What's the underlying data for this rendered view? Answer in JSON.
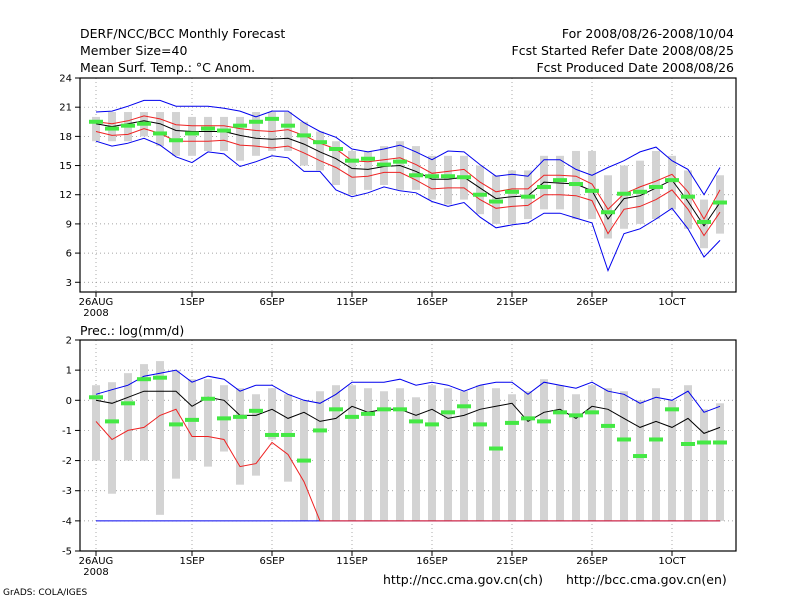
{
  "header": {
    "title": "DERF/NCC/BCC Monthly Forecast",
    "member_size": "Member Size=40",
    "variable": "Mean Surf. Temp.: °C Anom.",
    "period": "For 2008/08/26-2008/10/04",
    "started": "Fcst Started Refer Date 2008/08/25",
    "produced": "Fcst Produced Date 2008/08/26"
  },
  "footer": {
    "url_ch": "http://ncc.cma.gov.cn(ch)",
    "url_en": "http://bcc.cma.gov.cn(en)",
    "credit": "GrADS: COLA/IGES"
  },
  "colors": {
    "bar": "#d3d3d3",
    "member": "#44e844",
    "max_min": "#0000ee",
    "spread": "#ee2222",
    "mean": "#000000",
    "grid": "#888888"
  },
  "chart_data": [
    {
      "type": "line",
      "title": "Mean Surf. Temp.: °C Anom.",
      "x": [
        1,
        2,
        3,
        4,
        5,
        6,
        7,
        8,
        9,
        10,
        11,
        12,
        13,
        14,
        15,
        16,
        17,
        18,
        19,
        20,
        21,
        22,
        23,
        24,
        25,
        26,
        27,
        28,
        29,
        30,
        31,
        32,
        33,
        34,
        35,
        36,
        37,
        38,
        39,
        40
      ],
      "xlim": [
        0,
        41
      ],
      "ylim": [
        2,
        24
      ],
      "yticks": [
        3,
        6,
        9,
        12,
        15,
        18,
        21,
        24
      ],
      "xticks": [
        {
          "x": 1,
          "label": "26AUG"
        },
        {
          "x": 7,
          "label": "1SEP"
        },
        {
          "x": 12,
          "label": "6SEP"
        },
        {
          "x": 17,
          "label": "11SEP"
        },
        {
          "x": 22,
          "label": "16SEP"
        },
        {
          "x": 27,
          "label": "21SEP"
        },
        {
          "x": 32,
          "label": "26SEP"
        },
        {
          "x": 37,
          "label": "1OCT"
        }
      ],
      "year_label": "2008",
      "series": [
        {
          "name": "max",
          "values": [
            20.5,
            20.6,
            21.1,
            21.7,
            21.7,
            21.1,
            21.1,
            21.1,
            20.9,
            20.6,
            20.0,
            20.6,
            20.6,
            19.4,
            18.5,
            17.9,
            16.7,
            16.4,
            16.7,
            17.1,
            16.4,
            15.6,
            16.5,
            16.4,
            15.1,
            13.9,
            14.1,
            13.9,
            15.6,
            15.6,
            14.6,
            14.0,
            14.8,
            15.5,
            16.4,
            16.9,
            15.5,
            14.6,
            12.0,
            14.8
          ]
        },
        {
          "name": "upper",
          "values": [
            19.5,
            19.3,
            19.6,
            20.1,
            19.8,
            19.2,
            19.1,
            19.1,
            19.1,
            18.8,
            18.6,
            18.5,
            18.7,
            18.1,
            17.3,
            16.7,
            15.5,
            15.4,
            15.6,
            15.8,
            15.1,
            14.2,
            14.4,
            14.6,
            13.3,
            12.3,
            12.6,
            12.6,
            14.0,
            14.0,
            13.9,
            13.1,
            10.5,
            12.1,
            12.8,
            13.4,
            14.1,
            12.3,
            9.5,
            12.5
          ]
        },
        {
          "name": "mean",
          "values": [
            19.3,
            19.0,
            19.3,
            19.6,
            19.3,
            18.6,
            18.5,
            18.5,
            18.5,
            18.1,
            17.8,
            17.7,
            17.8,
            17.2,
            16.4,
            15.7,
            14.7,
            14.6,
            14.9,
            15.0,
            14.4,
            13.6,
            13.6,
            13.8,
            12.7,
            11.6,
            11.8,
            11.9,
            13.3,
            13.2,
            13.1,
            12.4,
            9.5,
            11.6,
            11.9,
            12.7,
            13.5,
            11.3,
            8.8,
            11.2
          ]
        },
        {
          "name": "lower",
          "values": [
            18.5,
            18.1,
            18.2,
            18.8,
            18.3,
            17.5,
            17.5,
            17.5,
            17.6,
            17.1,
            17.0,
            16.8,
            17.0,
            16.3,
            15.5,
            14.8,
            13.8,
            13.9,
            14.3,
            14.3,
            13.5,
            12.6,
            12.7,
            12.7,
            11.5,
            10.6,
            10.8,
            10.9,
            12.0,
            12.0,
            11.9,
            11.4,
            8.0,
            10.5,
            10.8,
            11.5,
            12.5,
            10.5,
            7.8,
            10.2
          ]
        },
        {
          "name": "min",
          "values": [
            17.5,
            17.0,
            17.3,
            17.8,
            17.1,
            15.9,
            15.3,
            16.4,
            16.2,
            14.9,
            15.4,
            16.0,
            15.8,
            14.4,
            14.4,
            12.5,
            11.8,
            12.2,
            12.8,
            12.4,
            12.2,
            11.3,
            10.8,
            11.2,
            9.7,
            8.6,
            8.9,
            9.1,
            10.1,
            10.1,
            9.6,
            9.1,
            4.2,
            8.0,
            8.5,
            9.5,
            10.6,
            8.5,
            5.6,
            7.3
          ]
        },
        {
          "name": "members",
          "values": [
            19.5,
            18.8,
            19.1,
            19.3,
            18.3,
            17.6,
            18.3,
            18.8,
            18.6,
            19.1,
            19.5,
            19.8,
            19.1,
            18.1,
            17.4,
            16.7,
            15.5,
            15.7,
            15.1,
            15.4,
            14.0,
            13.9,
            13.9,
            13.8,
            12.0,
            11.3,
            12.3,
            11.8,
            12.8,
            13.5,
            13.1,
            12.4,
            10.2,
            12.1,
            12.3,
            12.8,
            13.5,
            11.8,
            9.2,
            11.2
          ]
        },
        {
          "name": "bar_top",
          "values": [
            20.0,
            20.5,
            20.5,
            20.5,
            20.5,
            20.5,
            20.0,
            20.0,
            20.0,
            20.0,
            20.5,
            20.5,
            20.5,
            19.5,
            18.5,
            17.5,
            16.5,
            16.5,
            17.0,
            17.5,
            17.0,
            16.0,
            16.0,
            16.0,
            15.0,
            14.0,
            14.5,
            14.5,
            16.0,
            16.0,
            16.5,
            16.5,
            14.0,
            15.0,
            15.5,
            16.5,
            16.0,
            14.5,
            11.5,
            14.0
          ]
        },
        {
          "name": "bar_bottom",
          "values": [
            17.5,
            17.5,
            17.5,
            18.0,
            17.0,
            16.0,
            16.0,
            16.5,
            16.5,
            15.5,
            16.0,
            16.5,
            16.5,
            15.0,
            14.5,
            13.0,
            12.0,
            12.5,
            13.0,
            12.5,
            12.5,
            11.5,
            11.0,
            11.5,
            10.0,
            9.0,
            9.0,
            9.5,
            10.5,
            10.5,
            9.5,
            9.5,
            7.5,
            8.5,
            9.0,
            9.5,
            10.5,
            8.5,
            6.5,
            8.0
          ]
        }
      ]
    },
    {
      "type": "line",
      "title": "Prec.: log(mm/d)",
      "x": [
        1,
        2,
        3,
        4,
        5,
        6,
        7,
        8,
        9,
        10,
        11,
        12,
        13,
        14,
        15,
        16,
        17,
        18,
        19,
        20,
        21,
        22,
        23,
        24,
        25,
        26,
        27,
        28,
        29,
        30,
        31,
        32,
        33,
        34,
        35,
        36,
        37,
        38,
        39,
        40
      ],
      "xlim": [
        0,
        41
      ],
      "ylim": [
        -5,
        2
      ],
      "yticks": [
        -5,
        -4,
        -3,
        -2,
        -1,
        0,
        1,
        2
      ],
      "xticks": [
        {
          "x": 1,
          "label": "26AUG"
        },
        {
          "x": 7,
          "label": "1SEP"
        },
        {
          "x": 12,
          "label": "6SEP"
        },
        {
          "x": 17,
          "label": "11SEP"
        },
        {
          "x": 22,
          "label": "16SEP"
        },
        {
          "x": 27,
          "label": "21SEP"
        },
        {
          "x": 32,
          "label": "26SEP"
        },
        {
          "x": 37,
          "label": "1OCT"
        }
      ],
      "year_label": "2008",
      "series": [
        {
          "name": "max",
          "values": [
            0.2,
            0.35,
            0.5,
            0.8,
            0.9,
            1.0,
            0.6,
            0.8,
            0.7,
            0.3,
            0.5,
            0.5,
            0.2,
            0.0,
            -0.1,
            0.2,
            0.6,
            0.6,
            0.6,
            0.7,
            0.5,
            0.6,
            0.5,
            0.3,
            0.5,
            0.6,
            0.6,
            0.2,
            0.6,
            0.5,
            0.4,
            0.6,
            0.3,
            0.2,
            -0.1,
            0.1,
            0.0,
            0.3,
            -0.4,
            -0.2
          ]
        },
        {
          "name": "mean",
          "values": [
            0.0,
            -0.1,
            0.1,
            0.3,
            0.3,
            0.3,
            -0.2,
            0.1,
            0.0,
            -0.5,
            -0.5,
            -0.3,
            -0.6,
            -0.4,
            -0.7,
            -0.6,
            -0.2,
            -0.4,
            -0.3,
            -0.3,
            -0.5,
            -0.3,
            -0.6,
            -0.5,
            -0.3,
            -0.2,
            -0.1,
            -0.7,
            -0.4,
            -0.3,
            -0.6,
            -0.2,
            -0.3,
            -0.6,
            -0.9,
            -0.7,
            -0.9,
            -0.6,
            -1.1,
            -0.9
          ]
        },
        {
          "name": "lower",
          "values": [
            -0.7,
            -1.3,
            -1.0,
            -0.9,
            -0.5,
            -0.3,
            -1.2,
            -1.2,
            -1.3,
            -2.2,
            -2.1,
            -1.4,
            -1.8,
            -2.7,
            -4.0,
            -4.0,
            -4.0,
            -4.0,
            -4.0,
            -4.0,
            -4.0,
            -4.0,
            -4.0,
            -4.0,
            -4.0,
            -4.0,
            -4.0,
            -4.0,
            -4.0,
            -4.0,
            -4.0,
            -4.0,
            -4.0,
            -4.0,
            -4.0,
            -4.0,
            -4.0,
            -4.0,
            -4.0,
            -4.0
          ]
        },
        {
          "name": "min",
          "values": [
            -4.0,
            -4.0,
            -4.0,
            -4.0,
            -4.0,
            -4.0,
            -4.0,
            -4.0,
            -4.0,
            -4.0,
            -4.0,
            -4.0,
            -4.0,
            -4.0,
            -4.0,
            -4.0,
            -4.0,
            -4.0,
            -4.0,
            -4.0,
            -4.0,
            -4.0,
            -4.0,
            -4.0,
            -4.0,
            -4.0,
            -4.0,
            -4.0,
            -4.0,
            -4.0,
            -4.0,
            -4.0,
            -4.0,
            -4.0,
            -4.0,
            -4.0,
            -4.0,
            -4.0,
            -4.0,
            -4.0
          ]
        },
        {
          "name": "members",
          "values": [
            0.1,
            -0.7,
            -0.1,
            0.7,
            0.75,
            -0.8,
            -0.65,
            0.05,
            -0.6,
            -0.55,
            -0.35,
            -1.15,
            -1.15,
            -2.0,
            -1.0,
            -0.3,
            -0.55,
            -0.45,
            -0.3,
            -0.3,
            -0.7,
            -0.8,
            -0.4,
            -0.2,
            -0.8,
            -1.6,
            -0.75,
            -0.6,
            -0.7,
            -0.4,
            -0.5,
            -0.4,
            -0.85,
            -1.3,
            -1.85,
            -1.3,
            -0.3,
            -1.45,
            -1.4,
            -1.4
          ]
        },
        {
          "name": "bar_top",
          "values": [
            0.5,
            0.6,
            0.9,
            1.2,
            1.3,
            1.0,
            0.7,
            0.7,
            0.5,
            0.4,
            0.2,
            0.4,
            0.2,
            0.0,
            0.3,
            0.5,
            0.5,
            0.4,
            0.3,
            0.4,
            0.1,
            0.5,
            0.4,
            0.3,
            0.5,
            0.4,
            0.2,
            0.3,
            0.7,
            0.5,
            0.2,
            0.5,
            0.4,
            0.3,
            0.0,
            0.4,
            0.0,
            0.5,
            -0.3,
            -0.1
          ]
        },
        {
          "name": "bar_bottom",
          "values": [
            -2.0,
            -3.1,
            -2.0,
            -2.0,
            -3.8,
            -2.6,
            -2.0,
            -2.2,
            -1.7,
            -2.8,
            -2.5,
            -1.3,
            -2.7,
            -4.0,
            -4.0,
            -4.0,
            -4.0,
            -4.0,
            -4.0,
            -4.0,
            -4.0,
            -4.0,
            -4.0,
            -4.0,
            -4.0,
            -4.0,
            -4.0,
            -4.0,
            -4.0,
            -4.0,
            -4.0,
            -4.0,
            -4.0,
            -4.0,
            -4.0,
            -4.0,
            -4.0,
            -4.0,
            -4.0,
            -4.0
          ]
        }
      ]
    }
  ]
}
